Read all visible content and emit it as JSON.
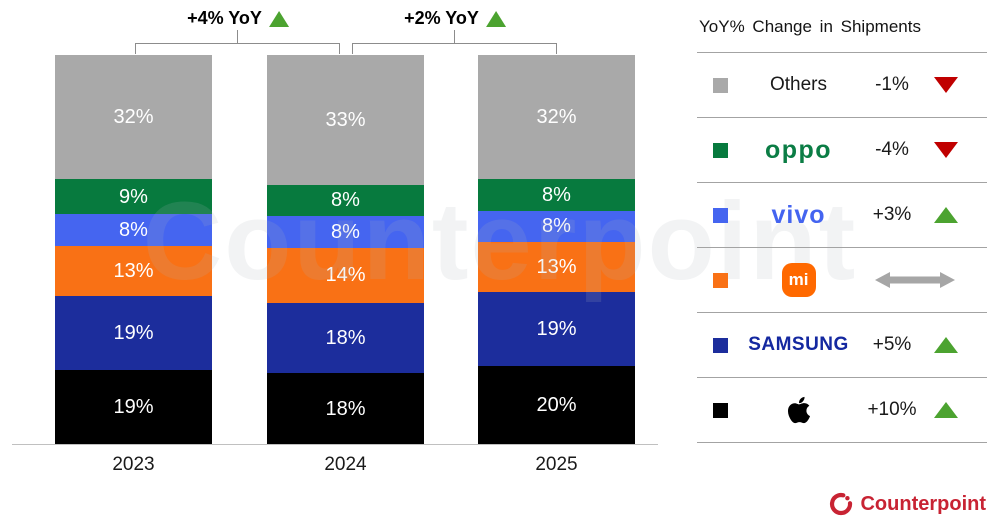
{
  "watermark": "Counterpoint",
  "chart_data": {
    "type": "bar",
    "stacked": true,
    "title": "",
    "categories": [
      "2023",
      "2024",
      "2025"
    ],
    "series": [
      {
        "name": "Apple",
        "color": "#000000",
        "values": [
          19,
          18,
          20
        ]
      },
      {
        "name": "Samsung",
        "color": "#1c2d9c",
        "values": [
          19,
          18,
          19
        ]
      },
      {
        "name": "Xiaomi",
        "color": "#f97115",
        "values": [
          13,
          14,
          13
        ]
      },
      {
        "name": "vivo",
        "color": "#4565f0",
        "values": [
          8,
          8,
          8
        ]
      },
      {
        "name": "OPPO",
        "color": "#077a3e",
        "values": [
          9,
          8,
          8
        ]
      },
      {
        "name": "Others",
        "color": "#a9a9a9",
        "values": [
          32,
          33,
          32
        ]
      }
    ],
    "value_suffix": "%",
    "ylim": [
      0,
      100
    ],
    "legend_position": "right",
    "grid": false,
    "annotations": [
      {
        "label": "+4% YoY",
        "direction": "up",
        "from": "2023",
        "to": "2024"
      },
      {
        "label": "+2% YoY",
        "direction": "up",
        "from": "2024",
        "to": "2025"
      }
    ]
  },
  "legend": {
    "header": "YoY% Change in Shipments",
    "rows": [
      {
        "key": "others",
        "label": "Others",
        "logo": "text",
        "swatch": "#a9a9a9",
        "change": "-1%",
        "direction": "down"
      },
      {
        "key": "oppo",
        "label": "oppo",
        "logo": "oppo",
        "swatch": "#077a3e",
        "change": "-4%",
        "direction": "down"
      },
      {
        "key": "vivo",
        "label": "vivo",
        "logo": "vivo",
        "swatch": "#4565f0",
        "change": "+3%",
        "direction": "up"
      },
      {
        "key": "xiaomi",
        "label": "mi",
        "logo": "mi",
        "swatch": "#f97115",
        "change": "",
        "direction": "flat"
      },
      {
        "key": "samsung",
        "label": "SAMSUNG",
        "logo": "samsung",
        "swatch": "#1c2d9c",
        "change": "+5%",
        "direction": "up"
      },
      {
        "key": "apple",
        "label": "",
        "logo": "apple",
        "swatch": "#000000",
        "change": "+10%",
        "direction": "up"
      }
    ]
  },
  "footer": {
    "brand": "Counterpoint"
  },
  "colors": {
    "up": "#4ca330",
    "down": "#c00000",
    "flat": "#a6a6a6",
    "brand_red": "#c82333",
    "axis": "#c0c0c0"
  }
}
